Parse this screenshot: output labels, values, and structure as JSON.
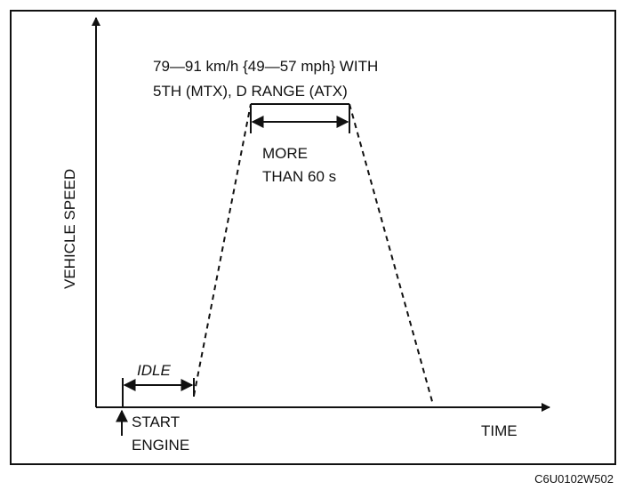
{
  "speed_note": {
    "line1": "79—91 km/h {49—57 mph} WITH",
    "line2": "5TH (MTX), D RANGE (ATX)"
  },
  "duration": {
    "line1": "MORE",
    "line2": "THAN 60 s"
  },
  "axes": {
    "y_label": "VEHICLE SPEED",
    "x_label": "TIME"
  },
  "idle_label": "IDLE",
  "start": {
    "line1": "START",
    "line2": "ENGINE"
  },
  "figure_id": "C6U0102W502"
}
